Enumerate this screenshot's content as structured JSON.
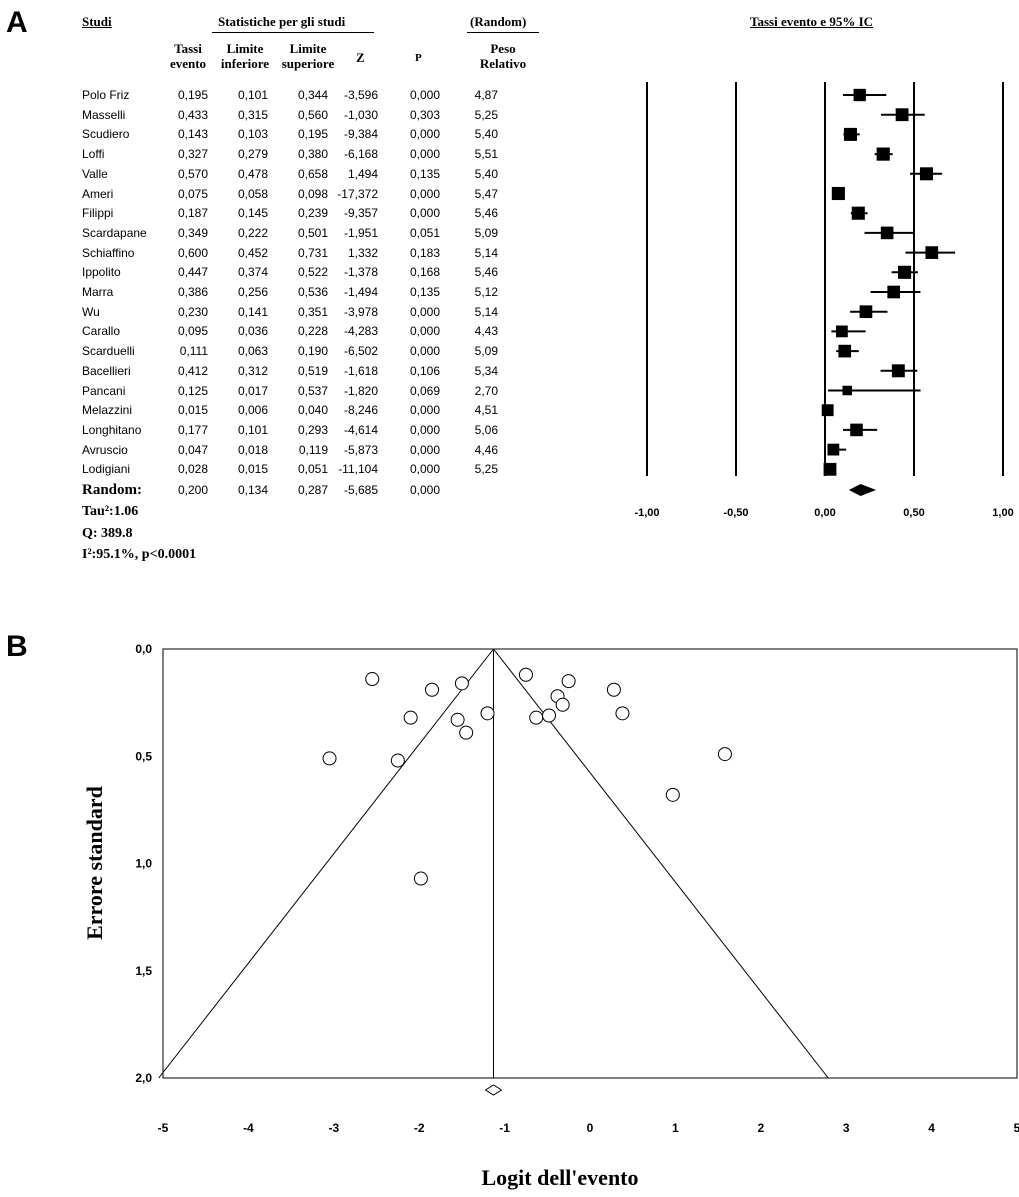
{
  "panelA": {
    "letter": "A",
    "headers": {
      "studi": "Studi",
      "group": "Statistiche per gli studi",
      "random": "(Random)",
      "plot_title": "Tassi evento e 95% IC",
      "tassi1": "Tassi",
      "tassi2": "evento",
      "lim_inf1": "Limite",
      "lim_inf2": "inferiore",
      "lim_sup1": "Limite",
      "lim_sup2": "superiore",
      "z": "Z",
      "p": "P",
      "peso1": "Peso",
      "peso2": "Relativo"
    },
    "summary": {
      "label": "Random:",
      "rate": "0,200",
      "lower": "0,134",
      "upper": "0,287",
      "z": "-5,685",
      "p": "0,000",
      "tau": "Tau²:1.06",
      "q": "Q: 389.8",
      "i2": "I²:95.1%, p<0.0001"
    },
    "x_ticks": [
      "-1,00",
      "-0,50",
      "0,00",
      "0,50",
      "1,00"
    ]
  },
  "panelB": {
    "letter": "B",
    "xlabel": "Logit dell'evento",
    "ylabel": "Errore standard",
    "x_ticks": [
      "-5",
      "-4",
      "-3",
      "-2",
      "-1",
      "0",
      "1",
      "2",
      "3",
      "4",
      "5"
    ],
    "y_ticks": [
      "0,0",
      "0,5",
      "1,0",
      "1,5",
      "2,0"
    ]
  },
  "chart_data": [
    {
      "type": "table",
      "title": "Tassi evento e 95% IC",
      "columns": [
        "Studi",
        "Tassi evento",
        "Limite inferiore",
        "Limite superiore",
        "Z",
        "P",
        "Peso Relativo"
      ],
      "rows": [
        {
          "study": "Polo Friz",
          "rate": "0,195",
          "lower": "0,101",
          "upper": "0,344",
          "z": "-3,596",
          "p": "0,000",
          "weight": "4,87"
        },
        {
          "study": "Masselli",
          "rate": "0,433",
          "lower": "0,315",
          "upper": "0,560",
          "z": "-1,030",
          "p": "0,303",
          "weight": "5,25"
        },
        {
          "study": "Scudiero",
          "rate": "0,143",
          "lower": "0,103",
          "upper": "0,195",
          "z": "-9,384",
          "p": "0,000",
          "weight": "5,40"
        },
        {
          "study": "Loffi",
          "rate": "0,327",
          "lower": "0,279",
          "upper": "0,380",
          "z": "-6,168",
          "p": "0,000",
          "weight": "5,51"
        },
        {
          "study": "Valle",
          "rate": "0,570",
          "lower": "0,478",
          "upper": "0,658",
          "z": "1,494",
          "p": "0,135",
          "weight": "5,40"
        },
        {
          "study": "Ameri",
          "rate": "0,075",
          "lower": "0,058",
          "upper": "0,098",
          "z": "-17,372",
          "p": "0,000",
          "weight": "5,47"
        },
        {
          "study": "Filippi",
          "rate": "0,187",
          "lower": "0,145",
          "upper": "0,239",
          "z": "-9,357",
          "p": "0,000",
          "weight": "5,46"
        },
        {
          "study": "Scardapane",
          "rate": "0,349",
          "lower": "0,222",
          "upper": "0,501",
          "z": "-1,951",
          "p": "0,051",
          "weight": "5,09"
        },
        {
          "study": "Schiaffino",
          "rate": "0,600",
          "lower": "0,452",
          "upper": "0,731",
          "z": "1,332",
          "p": "0,183",
          "weight": "5,14"
        },
        {
          "study": "Ippolito",
          "rate": "0,447",
          "lower": "0,374",
          "upper": "0,522",
          "z": "-1,378",
          "p": "0,168",
          "weight": "5,46"
        },
        {
          "study": "Marra",
          "rate": "0,386",
          "lower": "0,256",
          "upper": "0,536",
          "z": "-1,494",
          "p": "0,135",
          "weight": "5,12"
        },
        {
          "study": "Wu",
          "rate": "0,230",
          "lower": "0,141",
          "upper": "0,351",
          "z": "-3,978",
          "p": "0,000",
          "weight": "5,14"
        },
        {
          "study": "Carallo",
          "rate": "0,095",
          "lower": "0,036",
          "upper": "0,228",
          "z": "-4,283",
          "p": "0,000",
          "weight": "4,43"
        },
        {
          "study": "Scarduelli",
          "rate": "0,111",
          "lower": "0,063",
          "upper": "0,190",
          "z": "-6,502",
          "p": "0,000",
          "weight": "5,09"
        },
        {
          "study": "Bacellieri",
          "rate": "0,412",
          "lower": "0,312",
          "upper": "0,519",
          "z": "-1,618",
          "p": "0,106",
          "weight": "5,34"
        },
        {
          "study": "Pancani",
          "rate": "0,125",
          "lower": "0,017",
          "upper": "0,537",
          "z": "-1,820",
          "p": "0,069",
          "weight": "2,70"
        },
        {
          "study": "Melazzini",
          "rate": "0,015",
          "lower": "0,006",
          "upper": "0,040",
          "z": "-8,246",
          "p": "0,000",
          "weight": "4,51"
        },
        {
          "study": "Longhitano",
          "rate": "0,177",
          "lower": "0,101",
          "upper": "0,293",
          "z": "-4,614",
          "p": "0,000",
          "weight": "5,06"
        },
        {
          "study": "Avruscio",
          "rate": "0,047",
          "lower": "0,018",
          "upper": "0,119",
          "z": "-5,873",
          "p": "0,000",
          "weight": "4,46"
        },
        {
          "study": "Lodigiani",
          "rate": "0,028",
          "lower": "0,015",
          "upper": "0,051",
          "z": "-11,104",
          "p": "0,000",
          "weight": "5,25"
        }
      ],
      "pooled": {
        "rate": 0.2,
        "lower": 0.134,
        "upper": 0.287
      },
      "xlim": [
        -1,
        1
      ],
      "xticks": [
        -1,
        -0.5,
        0,
        0.5,
        1
      ]
    },
    {
      "type": "scatter",
      "xlabel": "Logit dell'evento",
      "ylabel": "Errore standard",
      "xlim": [
        -5,
        5
      ],
      "ylim": [
        0,
        2
      ],
      "y_inverted": true,
      "pooled_logit": -1.13,
      "points": [
        {
          "x": -2.55,
          "y": 0.14
        },
        {
          "x": -1.85,
          "y": 0.19
        },
        {
          "x": -1.5,
          "y": 0.16
        },
        {
          "x": -2.1,
          "y": 0.32
        },
        {
          "x": -1.55,
          "y": 0.33
        },
        {
          "x": -1.2,
          "y": 0.3
        },
        {
          "x": -1.45,
          "y": 0.39
        },
        {
          "x": -3.05,
          "y": 0.51
        },
        {
          "x": -2.25,
          "y": 0.52
        },
        {
          "x": -1.98,
          "y": 1.07
        },
        {
          "x": -0.75,
          "y": 0.12
        },
        {
          "x": -0.25,
          "y": 0.15
        },
        {
          "x": -0.38,
          "y": 0.22
        },
        {
          "x": -0.32,
          "y": 0.26
        },
        {
          "x": -0.48,
          "y": 0.31
        },
        {
          "x": -0.63,
          "y": 0.32
        },
        {
          "x": 0.28,
          "y": 0.19
        },
        {
          "x": 0.38,
          "y": 0.3
        },
        {
          "x": 1.58,
          "y": 0.49
        },
        {
          "x": 0.97,
          "y": 0.68
        }
      ]
    }
  ]
}
